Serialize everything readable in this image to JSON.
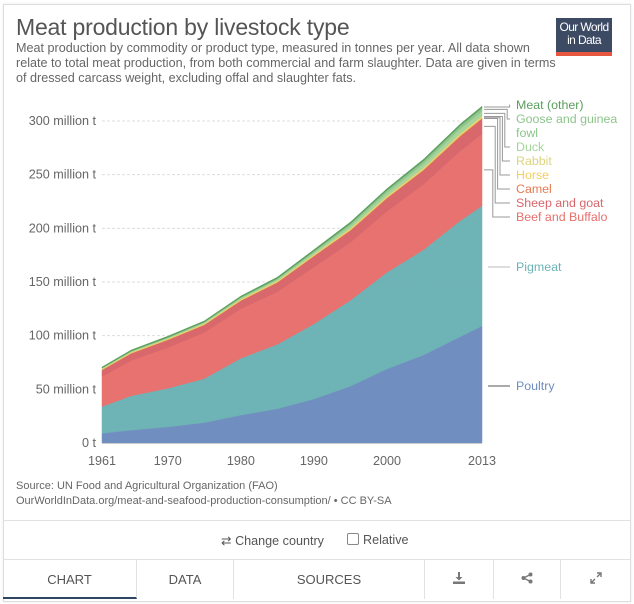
{
  "header": {
    "title": "Meat production by livestock type",
    "subtitle": "Meat production by commodity or product type, measured in tonnes per year. All data shown relate to total meat production, from both commercial and farm slaughter. Data are given in terms of dressed carcass weight, excluding offal and slaughter fats.",
    "logo_line1": "Our World",
    "logo_line2": "in Data"
  },
  "footer": {
    "source": "Source: UN Food and Agricultural Organization (FAO)",
    "url_license": "OurWorldInData.org/meat-and-seafood-production-consumption/ • CC BY-SA"
  },
  "controls": {
    "change_country_icon": "⇄",
    "change_country_label": "Change country",
    "relative_label": "Relative",
    "relative_checked": false
  },
  "tabs": [
    {
      "label": "CHART",
      "active": true
    },
    {
      "label": "DATA",
      "active": false
    },
    {
      "label": "SOURCES",
      "active": false
    },
    {
      "icon": "download-icon",
      "glyph": "⤓"
    },
    {
      "icon": "share-icon",
      "glyph": "<"
    },
    {
      "icon": "expand-icon",
      "glyph": "⤢"
    }
  ],
  "chart_data": {
    "type": "area",
    "stacked": true,
    "title": "Meat production by livestock type",
    "xlabel": "",
    "ylabel": "",
    "x_ticks": [
      "1961",
      "1970",
      "1980",
      "1990",
      "2000",
      "2013"
    ],
    "y_ticks": [
      "0 t",
      "50 million t",
      "100 million t",
      "150 million t",
      "200 million t",
      "250 million t",
      "300 million t"
    ],
    "y_tick_values": [
      0,
      50,
      100,
      150,
      200,
      250,
      300
    ],
    "ylim": [
      0,
      300
    ],
    "xlim": [
      1961,
      2013
    ],
    "grid": true,
    "legend_placement": "right",
    "x": [
      1961,
      1965,
      1970,
      1975,
      1980,
      1985,
      1990,
      1995,
      2000,
      2005,
      2010,
      2013
    ],
    "series": [
      {
        "name": "Poultry",
        "color": "#6f8cbf",
        "values": [
          9,
          12,
          15,
          19,
          26,
          32,
          41,
          53,
          69,
          82,
          99,
          109
        ]
      },
      {
        "name": "Pigmeat",
        "color": "#6cb2b5",
        "values": [
          25,
          32,
          36,
          41,
          53,
          60,
          70,
          80,
          90,
          98,
          108,
          112
        ]
      },
      {
        "name": "Beef and Buffalo",
        "color": "#e8706d",
        "values": [
          28,
          33,
          38,
          43,
          46,
          49,
          53,
          54,
          57,
          61,
          65,
          67
        ]
      },
      {
        "name": "Sheep and goat",
        "color": "#d8666a",
        "values": [
          6,
          6.5,
          7,
          7,
          7.5,
          8.5,
          10,
          11,
          12,
          13,
          13.5,
          14
        ]
      },
      {
        "name": "Camel",
        "color": "#e47c4f",
        "values": [
          0.2,
          0.2,
          0.2,
          0.25,
          0.3,
          0.3,
          0.35,
          0.4,
          0.45,
          0.5,
          0.6,
          0.6
        ]
      },
      {
        "name": "Horse",
        "color": "#f5cf5e",
        "values": [
          0.5,
          0.5,
          0.55,
          0.55,
          0.6,
          0.6,
          0.65,
          0.7,
          0.7,
          0.75,
          0.8,
          0.8
        ]
      },
      {
        "name": "Rabbit",
        "color": "#dcd47c",
        "values": [
          0.4,
          0.5,
          0.55,
          0.6,
          0.7,
          0.8,
          0.9,
          1.1,
          1.2,
          1.4,
          1.5,
          1.5
        ]
      },
      {
        "name": "Duck",
        "color": "#a5d49a",
        "values": [
          0.6,
          0.7,
          0.8,
          0.9,
          1.1,
          1.4,
          1.8,
          2.5,
          3.0,
          3.6,
          4.2,
          4.4
        ]
      },
      {
        "name": "Goose and guinea fowl",
        "color": "#8dc58b",
        "values": [
          0.3,
          0.35,
          0.4,
          0.5,
          0.6,
          0.8,
          1.1,
          1.8,
          2.3,
          2.6,
          2.9,
          3.0
        ]
      },
      {
        "name": "Meat (other)",
        "color": "#5a9e5c",
        "values": [
          0.8,
          0.9,
          1.0,
          1.0,
          1.1,
          1.2,
          1.3,
          1.4,
          1.4,
          1.5,
          1.5,
          1.5
        ]
      }
    ]
  }
}
